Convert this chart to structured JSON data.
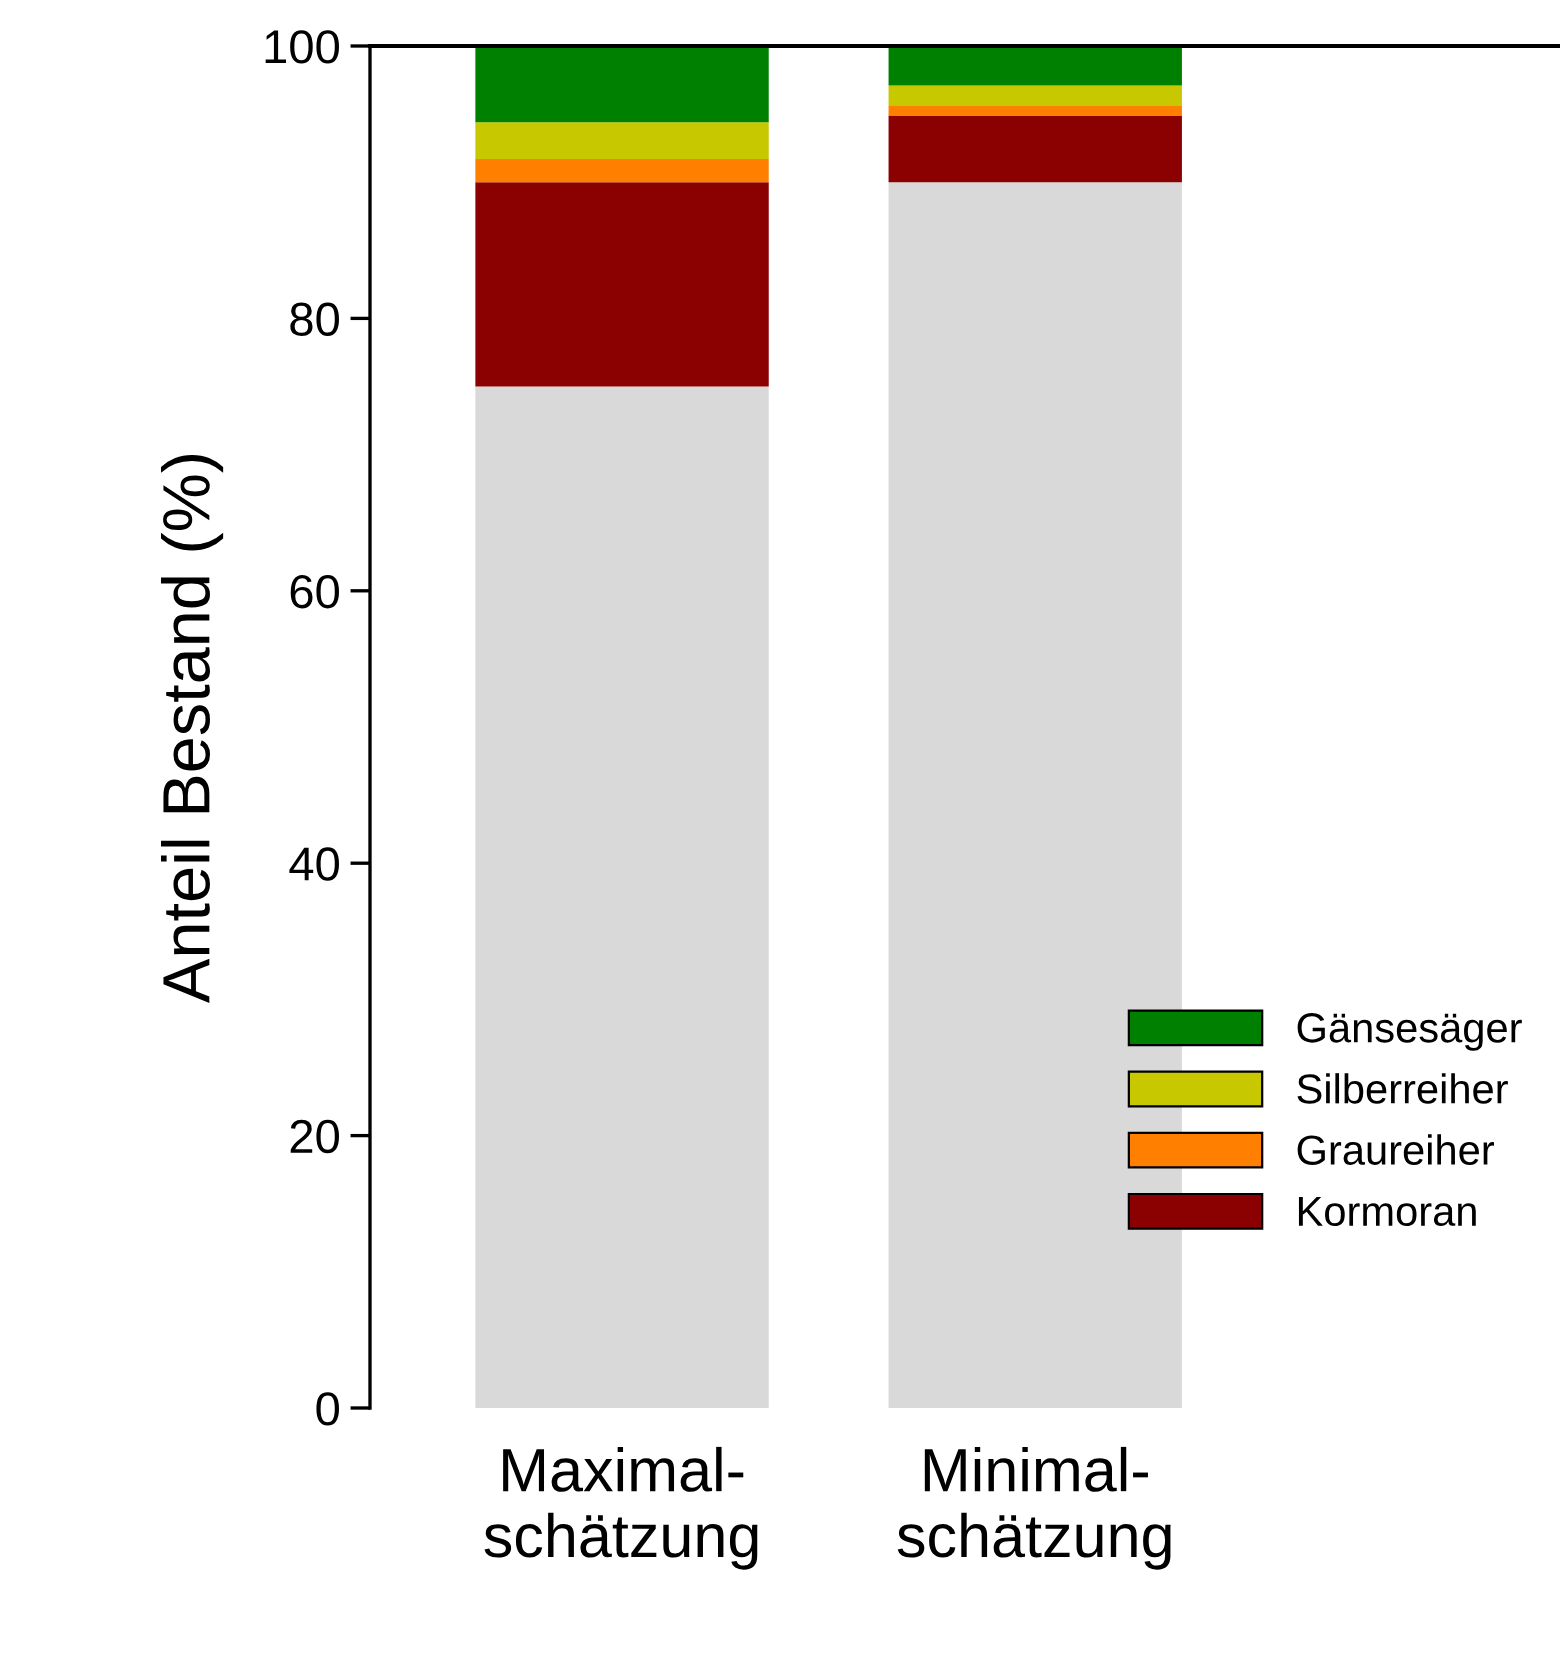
{
  "chart_data": {
    "type": "bar",
    "stacked": true,
    "ylabel": "Anteil Bestand (%)",
    "categories": [
      "Maximal-\nschätzung",
      "Minimal-\nschätzung"
    ],
    "series": [
      {
        "color": "#d9d9d9",
        "values": [
          75,
          90
        ]
      },
      {
        "name": "Kormoran",
        "color": "#8b0000",
        "values": [
          15,
          4.9
        ]
      },
      {
        "name": "Graureiher",
        "color": "#ff8000",
        "values": [
          1.7,
          0.7
        ]
      },
      {
        "name": "Silberreiher",
        "color": "#c8c800",
        "values": [
          2.7,
          1.5
        ]
      },
      {
        "name": "Gänsesäger",
        "color": "#008000",
        "values": [
          5.6,
          2.9
        ]
      }
    ],
    "ylim": [
      0,
      100
    ],
    "yticks": [
      0,
      20,
      40,
      60,
      80,
      100
    ],
    "grid": false,
    "legend": "bottom right"
  }
}
